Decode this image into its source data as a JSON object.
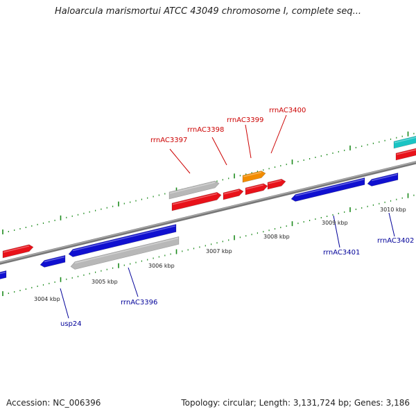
{
  "header": {
    "title": "Haloarcula marismortui ATCC 43049 chromosome I, complete seq..."
  },
  "footer": {
    "accession": "Accession: NC_006396",
    "summary": "Topology: circular; Length: 3,131,724 bp; Genes: 3,186"
  },
  "colors": {
    "backbone": "#888888",
    "tick": "#1c8a1c",
    "forward_label": "#cc0000",
    "reverse_label": "#000099",
    "red_feature": "#e8121a",
    "blue_feature": "#1010d0",
    "gray_feature": "#b8b8b8",
    "orange_feature": "#f28c00",
    "cyan_feature": "#1ac4c4"
  },
  "kbp_labels": [
    "3004 kbp",
    "3005 kbp",
    "3006 kbp",
    "3007 kbp",
    "3008 kbp",
    "3009 kbp",
    "3010 kbp"
  ],
  "gene_labels": {
    "rrnAC3397": "rrnAC3397",
    "rrnAC3398": "rrnAC3398",
    "rrnAC3399": "rrnAC3399",
    "rrnAC3400": "rrnAC3400",
    "rrnAC3396": "rrnAC3396",
    "usp24": "usp24",
    "rrnAC3401": "rrnAC3401",
    "rrnAC3402": "rrnAC3402"
  },
  "features": [
    {
      "name": "feature-red-left",
      "color": "red",
      "strand": "forward"
    },
    {
      "name": "feature-blue-left-edge",
      "color": "blue",
      "strand": "reverse"
    },
    {
      "name": "feature-blue-small",
      "color": "blue",
      "strand": "reverse"
    },
    {
      "name": "feature-blue-long",
      "color": "blue",
      "strand": "reverse"
    },
    {
      "name": "feature-gray-lower",
      "color": "gray",
      "strand": "reverse"
    },
    {
      "name": "feature-gray-upper",
      "color": "gray",
      "strand": "forward"
    },
    {
      "name": "feature-red-rrnAC3397",
      "color": "red",
      "strand": "forward"
    },
    {
      "name": "feature-red-rrnAC3398",
      "color": "red",
      "strand": "forward"
    },
    {
      "name": "feature-orange-rrnAC3399",
      "color": "orange",
      "strand": "forward"
    },
    {
      "name": "feature-red-rrnAC3399",
      "color": "red",
      "strand": "forward"
    },
    {
      "name": "feature-red-rrnAC3400",
      "color": "red",
      "strand": "forward"
    },
    {
      "name": "feature-blue-rrnAC3401",
      "color": "blue",
      "strand": "reverse"
    },
    {
      "name": "feature-blue-rrnAC3402",
      "color": "blue",
      "strand": "reverse"
    },
    {
      "name": "feature-cyan-right",
      "color": "cyan",
      "strand": "forward"
    },
    {
      "name": "feature-red-right",
      "color": "red",
      "strand": "forward"
    }
  ]
}
